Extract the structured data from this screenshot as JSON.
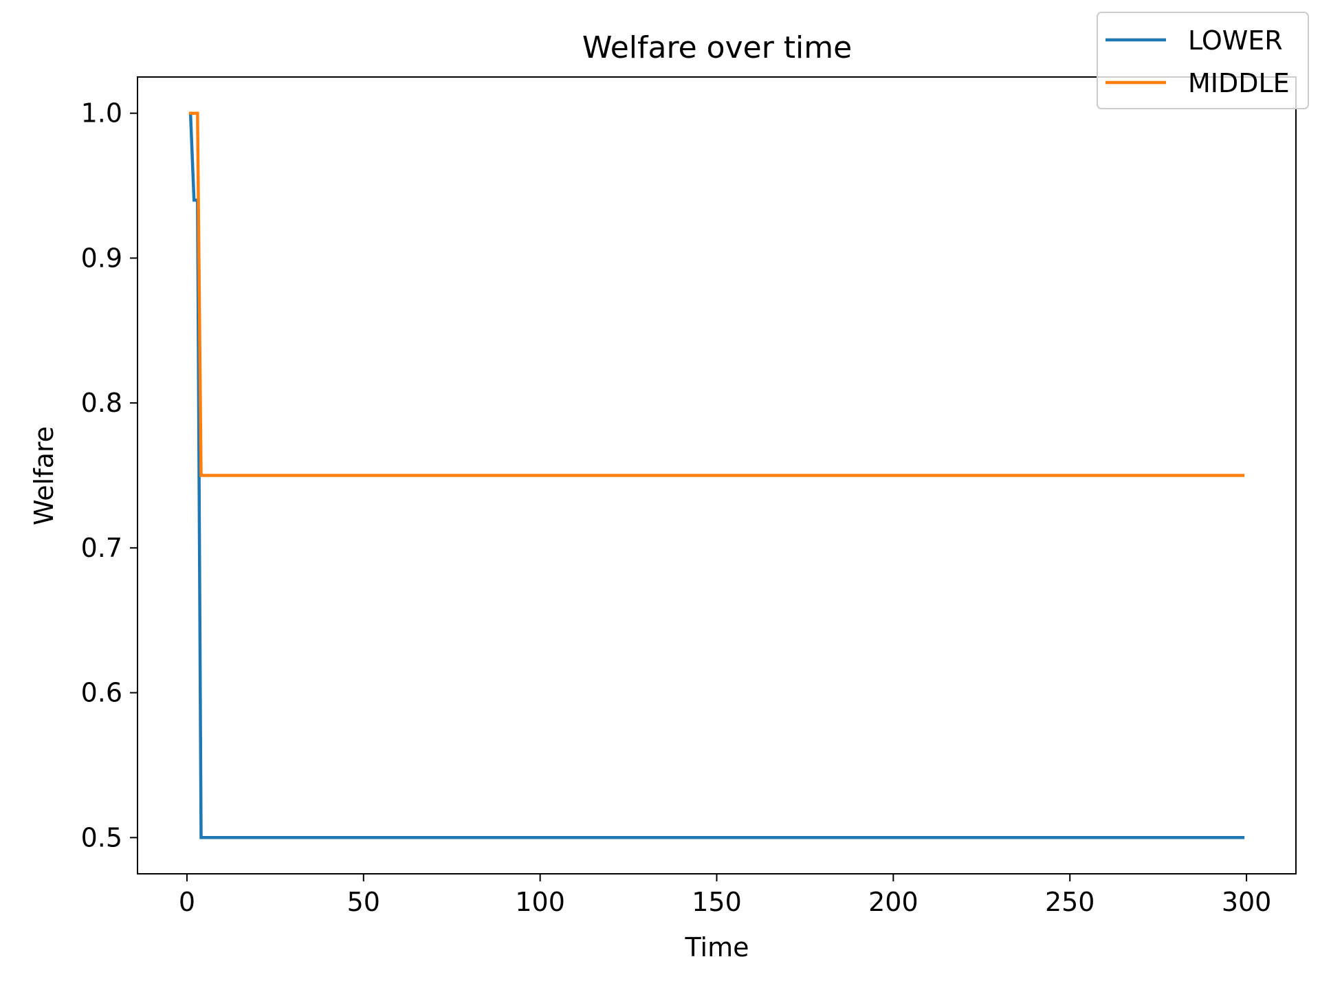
{
  "chart_data": {
    "type": "line",
    "title": "Welfare over time",
    "xlabel": "Time",
    "ylabel": "Welfare",
    "xlim": [
      -14,
      314
    ],
    "ylim": [
      0.475,
      1.025
    ],
    "xticks": [
      0,
      50,
      100,
      150,
      200,
      250,
      300
    ],
    "xtick_labels": [
      "0",
      "50",
      "100",
      "150",
      "200",
      "250",
      "300"
    ],
    "yticks": [
      0.5,
      0.6,
      0.7,
      0.8,
      0.9,
      1.0
    ],
    "ytick_labels": [
      "0.5",
      "0.6",
      "0.7",
      "0.8",
      "0.9",
      "1.0"
    ],
    "grid": false,
    "legend_position": "top-right",
    "series": [
      {
        "name": "LOWER",
        "color": "#1f77b4",
        "x": [
          1,
          2,
          3,
          4,
          299
        ],
        "y": [
          1.0,
          0.94,
          0.94,
          0.5,
          0.5
        ]
      },
      {
        "name": "MIDDLE",
        "color": "#ff7f0e",
        "x": [
          1,
          2,
          3,
          4,
          299
        ],
        "y": [
          1.0,
          1.0,
          1.0,
          0.75,
          0.75
        ]
      }
    ]
  }
}
